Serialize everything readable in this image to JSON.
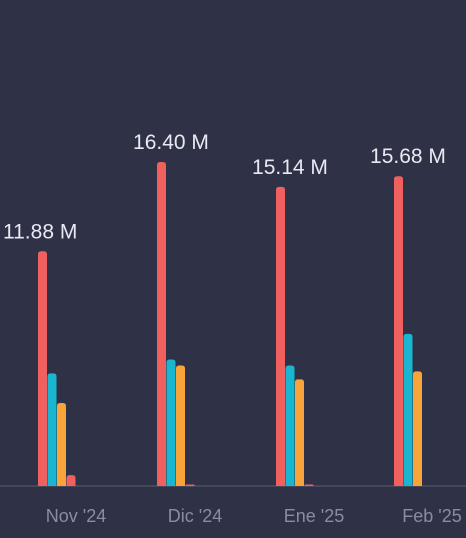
{
  "colors": {
    "background": "#2f3146",
    "baseline": "#5b5d73",
    "series": [
      "#f0605e",
      "#1ab6cf",
      "#f9a43a",
      "#f0605e"
    ]
  },
  "chart_data": {
    "type": "bar",
    "categories": [
      "Nov '24",
      "Dic '24",
      "Ene '25",
      "Feb '25"
    ],
    "totals": [
      "11.88 M",
      "16.40 M",
      "15.14 M",
      "15.68 M"
    ],
    "series": [
      {
        "values": [
          11.88,
          16.4,
          15.14,
          15.68
        ]
      },
      {
        "values": [
          5.7,
          6.4,
          6.1,
          7.7
        ]
      },
      {
        "values": [
          4.2,
          6.1,
          5.4,
          5.8
        ]
      },
      {
        "values": [
          0.55,
          0.05,
          0.05,
          0
        ]
      }
    ],
    "ylim": [
      0,
      16.4
    ],
    "grid": false,
    "legend": "none"
  }
}
